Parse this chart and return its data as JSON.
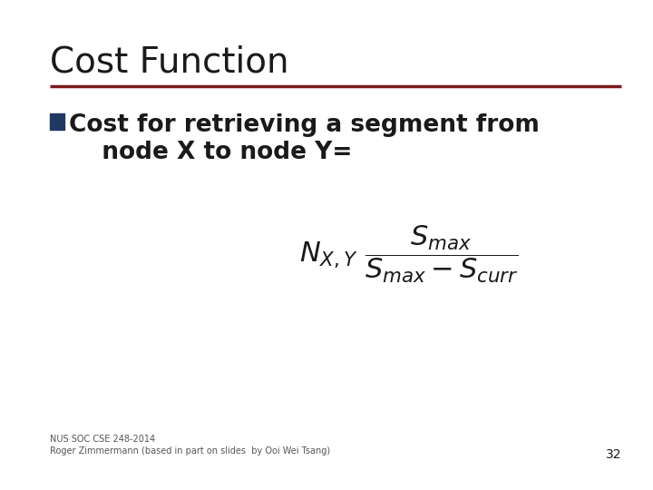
{
  "title": "Cost Function",
  "title_fontsize": 28,
  "title_color": "#1a1a1a",
  "line_color": "#7b1a1a",
  "bullet_color": "#1f3864",
  "bullet_text_line1": "Cost for retrieving a segment from",
  "bullet_text_line2": "  node X to node Y=",
  "bullet_fontsize": 19,
  "formula_fontsize": 22,
  "footer_line1": "NUS SOC CSE 248-2014",
  "footer_line2": "Roger Zimmermann (based in part on slides  by Ooi Wei Tsang)",
  "footer_fontsize": 7,
  "page_number": "32",
  "page_number_fontsize": 10,
  "background_color": "#ffffff",
  "text_color": "#1a1a1a"
}
